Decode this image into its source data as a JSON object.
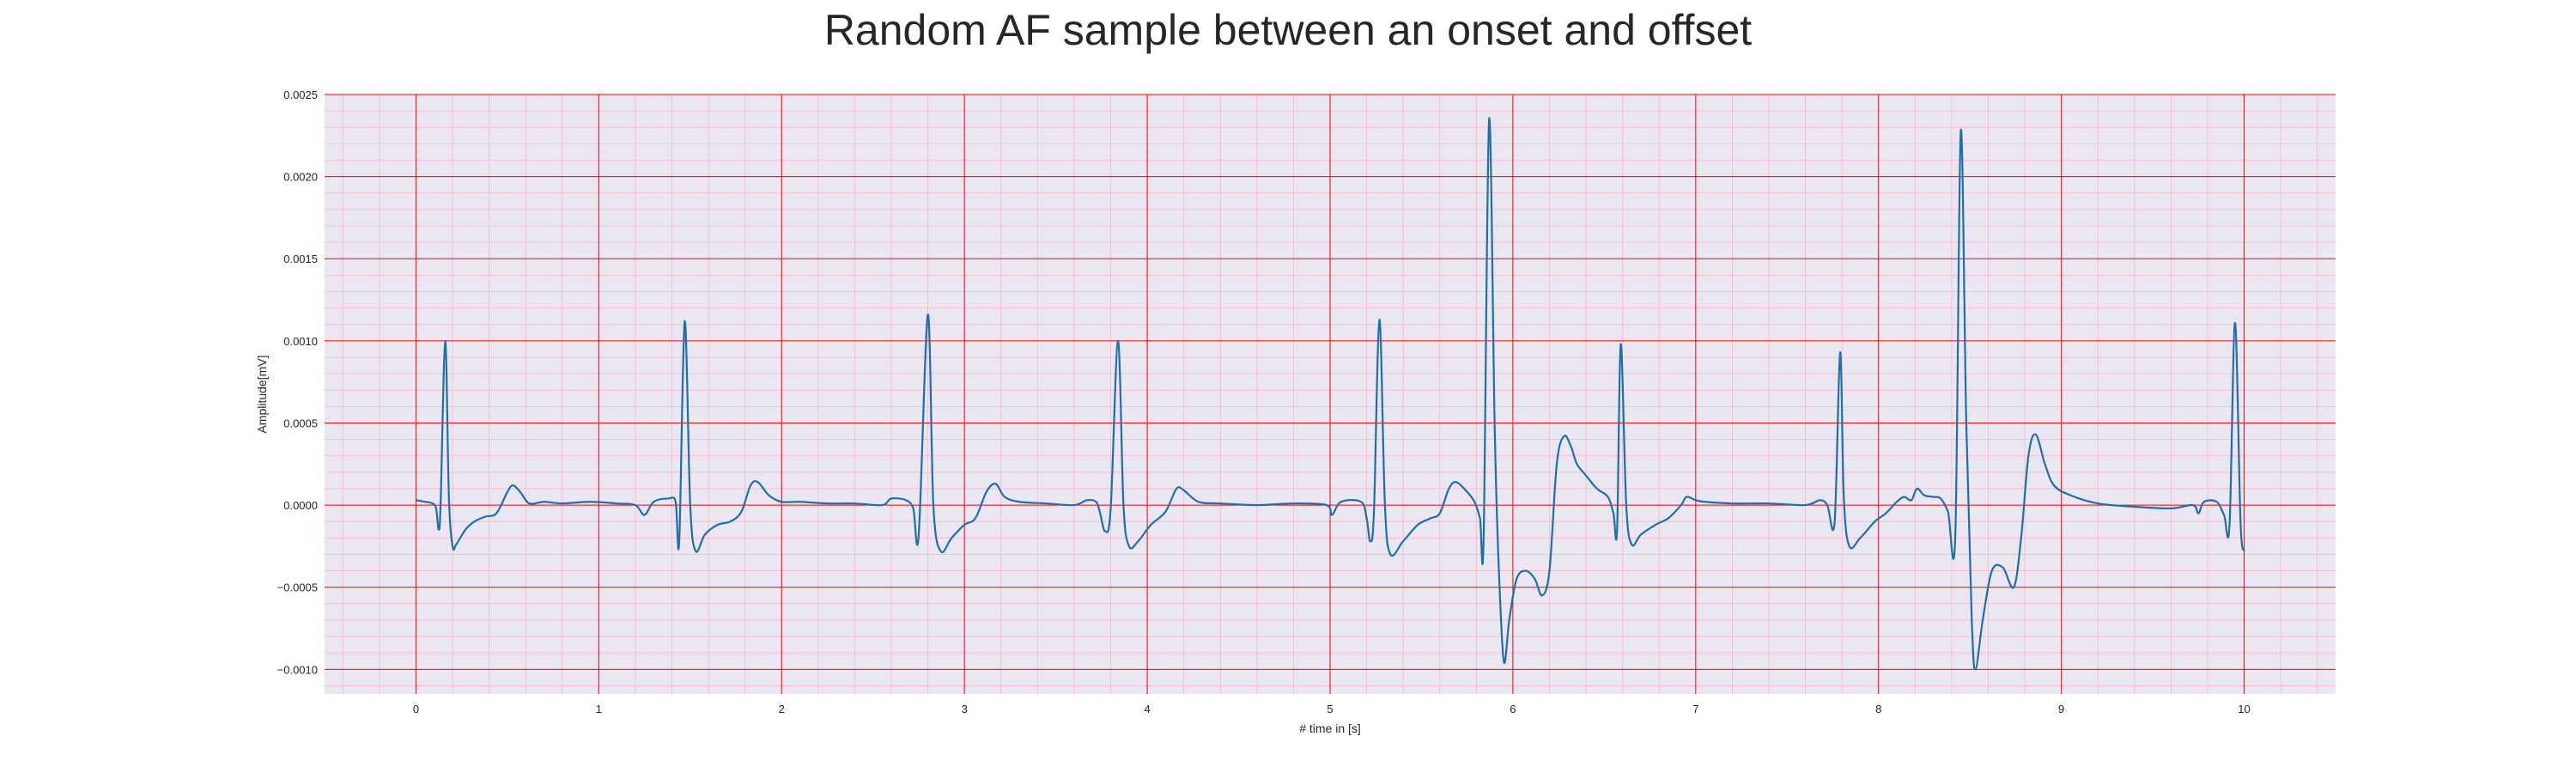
{
  "chart_data": {
    "type": "line",
    "title": "Random AF sample between an onset and offset",
    "xlabel": "# time in [s]",
    "ylabel": "Amplitude[mV]",
    "xlim": [
      -0.5,
      10.5
    ],
    "ylim": [
      -0.00115,
      0.0025
    ],
    "x_ticks": [
      0,
      1,
      2,
      3,
      4,
      5,
      6,
      7,
      8,
      9,
      10
    ],
    "y_ticks": [
      -0.001,
      -0.0005,
      0.0,
      0.0005,
      0.001,
      0.0015,
      0.002,
      0.0025
    ],
    "x_tick_labels": [
      "0",
      "1",
      "2",
      "3",
      "4",
      "5",
      "6",
      "7",
      "8",
      "9",
      "10"
    ],
    "y_tick_labels": [
      "−0.0010",
      "−0.0005",
      "0.0000",
      "0.0005",
      "0.0010",
      "0.0015",
      "0.0020",
      "0.0025"
    ],
    "grid": {
      "major": true,
      "minor": true,
      "major_color": "#ff0000",
      "minor_color": "#ffb6c1"
    },
    "background_color": "#eae6f2",
    "series": [
      {
        "color": "#1f6fa8",
        "points": [
          [
            0.0,
            3e-05
          ],
          [
            0.05,
            2e-05
          ],
          [
            0.09,
            1e-05
          ],
          [
            0.11,
            -2e-05
          ],
          [
            0.125,
            -0.00015
          ],
          [
            0.135,
            2e-05
          ],
          [
            0.16,
            0.001
          ],
          [
            0.18,
            5e-05
          ],
          [
            0.2,
            -0.00025
          ],
          [
            0.22,
            -0.00024
          ],
          [
            0.27,
            -0.00015
          ],
          [
            0.32,
            -0.0001
          ],
          [
            0.38,
            -7e-05
          ],
          [
            0.44,
            -5e-05
          ],
          [
            0.5,
            8e-05
          ],
          [
            0.53,
            0.00012
          ],
          [
            0.57,
            8e-05
          ],
          [
            0.62,
            1e-05
          ],
          [
            0.7,
            2e-05
          ],
          [
            0.8,
            1e-05
          ],
          [
            0.95,
            2e-05
          ],
          [
            1.1,
            1e-05
          ],
          [
            1.2,
            0.0
          ],
          [
            1.25,
            -6e-05
          ],
          [
            1.3,
            2e-05
          ],
          [
            1.38,
            4e-05
          ],
          [
            1.42,
            2e-05
          ],
          [
            1.44,
            -0.00022
          ],
          [
            1.47,
            0.00112
          ],
          [
            1.5,
            0.0
          ],
          [
            1.53,
            -0.00028
          ],
          [
            1.58,
            -0.00018
          ],
          [
            1.65,
            -0.00012
          ],
          [
            1.72,
            -0.0001
          ],
          [
            1.78,
            -4e-05
          ],
          [
            1.83,
            0.00012
          ],
          [
            1.87,
            0.00014
          ],
          [
            1.93,
            6e-05
          ],
          [
            2.0,
            2e-05
          ],
          [
            2.1,
            2e-05
          ],
          [
            2.25,
            1e-05
          ],
          [
            2.4,
            1e-05
          ],
          [
            2.55,
            0.0
          ],
          [
            2.6,
            4e-05
          ],
          [
            2.68,
            3e-05
          ],
          [
            2.72,
            -2e-05
          ],
          [
            2.75,
            -0.00018
          ],
          [
            2.8,
            0.00116
          ],
          [
            2.83,
            0.0
          ],
          [
            2.87,
            -0.00028
          ],
          [
            2.93,
            -0.0002
          ],
          [
            3.0,
            -0.00012
          ],
          [
            3.06,
            -8e-05
          ],
          [
            3.12,
            8e-05
          ],
          [
            3.17,
            0.00013
          ],
          [
            3.22,
            5e-05
          ],
          [
            3.3,
            2e-05
          ],
          [
            3.45,
            1e-05
          ],
          [
            3.6,
            0.0
          ],
          [
            3.67,
            3e-05
          ],
          [
            3.72,
            2e-05
          ],
          [
            3.74,
            -4e-05
          ],
          [
            3.77,
            -0.00016
          ],
          [
            3.8,
            -2e-05
          ],
          [
            3.84,
            0.001
          ],
          [
            3.87,
            0.0
          ],
          [
            3.9,
            -0.00025
          ],
          [
            3.95,
            -0.00022
          ],
          [
            4.02,
            -0.00012
          ],
          [
            4.1,
            -4e-05
          ],
          [
            4.16,
            0.0001
          ],
          [
            4.2,
            9e-05
          ],
          [
            4.28,
            2e-05
          ],
          [
            4.4,
            1e-05
          ],
          [
            4.6,
            0.0
          ],
          [
            4.8,
            1e-05
          ],
          [
            4.98,
            0.0
          ],
          [
            5.01,
            -6e-05
          ],
          [
            5.06,
            2e-05
          ],
          [
            5.17,
            2e-05
          ],
          [
            5.2,
            -8e-05
          ],
          [
            5.22,
            -0.00022
          ],
          [
            5.24,
            -4e-05
          ],
          [
            5.27,
            0.00113
          ],
          [
            5.3,
            0.0
          ],
          [
            5.33,
            -0.0003
          ],
          [
            5.4,
            -0.00022
          ],
          [
            5.48,
            -0.00012
          ],
          [
            5.55,
            -8e-05
          ],
          [
            5.6,
            -5e-05
          ],
          [
            5.65,
            0.0001
          ],
          [
            5.69,
            0.00014
          ],
          [
            5.75,
            8e-05
          ],
          [
            5.79,
            2e-05
          ],
          [
            5.82,
            -8e-05
          ],
          [
            5.84,
            -0.0002
          ],
          [
            5.87,
            0.00235
          ],
          [
            5.9,
            0.0005
          ],
          [
            5.92,
            -0.0003
          ],
          [
            5.95,
            -0.00095
          ],
          [
            5.98,
            -0.0007
          ],
          [
            6.02,
            -0.00045
          ],
          [
            6.07,
            -0.0004
          ],
          [
            6.12,
            -0.00045
          ],
          [
            6.16,
            -0.00055
          ],
          [
            6.2,
            -0.0004
          ],
          [
            6.24,
            0.00025
          ],
          [
            6.28,
            0.00042
          ],
          [
            6.32,
            0.00035
          ],
          [
            6.35,
            0.00025
          ],
          [
            6.4,
            0.00018
          ],
          [
            6.46,
            0.0001
          ],
          [
            6.52,
            5e-05
          ],
          [
            6.55,
            -5e-05
          ],
          [
            6.57,
            -0.00015
          ],
          [
            6.59,
            0.00098
          ],
          [
            6.62,
            0.0
          ],
          [
            6.65,
            -0.00024
          ],
          [
            6.7,
            -0.00018
          ],
          [
            6.78,
            -0.00012
          ],
          [
            6.85,
            -8e-05
          ],
          [
            6.92,
            0.0
          ],
          [
            6.95,
            5e-05
          ],
          [
            7.0,
            3e-05
          ],
          [
            7.05,
            2e-05
          ],
          [
            7.2,
            1e-05
          ],
          [
            7.4,
            1e-05
          ],
          [
            7.6,
            0.0
          ],
          [
            7.68,
            3e-05
          ],
          [
            7.72,
            0.0
          ],
          [
            7.76,
            -0.0001
          ],
          [
            7.79,
            0.00093
          ],
          [
            7.81,
            5e-05
          ],
          [
            7.84,
            -0.00025
          ],
          [
            7.9,
            -0.0002
          ],
          [
            7.98,
            -0.0001
          ],
          [
            8.04,
            -5e-05
          ],
          [
            8.1,
            2e-05
          ],
          [
            8.14,
            5e-05
          ],
          [
            8.18,
            3e-05
          ],
          [
            8.21,
            0.0001
          ],
          [
            8.25,
            6e-05
          ],
          [
            8.3,
            5e-05
          ],
          [
            8.34,
            4e-05
          ],
          [
            8.38,
            -4e-05
          ],
          [
            8.42,
            -0.00018
          ],
          [
            8.45,
            0.00228
          ],
          [
            8.48,
            0.0005
          ],
          [
            8.51,
            -0.0007
          ],
          [
            8.53,
            -0.001
          ],
          [
            8.57,
            -0.0007
          ],
          [
            8.62,
            -0.0004
          ],
          [
            8.68,
            -0.00038
          ],
          [
            8.74,
            -0.0005
          ],
          [
            8.78,
            -0.0002
          ],
          [
            8.82,
            0.0003
          ],
          [
            8.86,
            0.00043
          ],
          [
            8.91,
            0.00025
          ],
          [
            8.96,
            0.00012
          ],
          [
            9.05,
            6e-05
          ],
          [
            9.2,
            1e-05
          ],
          [
            9.4,
            -1e-05
          ],
          [
            9.6,
            -2e-05
          ],
          [
            9.72,
            0.0
          ],
          [
            9.75,
            -5e-05
          ],
          [
            9.78,
            2e-05
          ],
          [
            9.85,
            2e-05
          ],
          [
            9.89,
            -6e-05
          ],
          [
            9.92,
            -0.00012
          ],
          [
            9.95,
            0.00111
          ],
          [
            9.98,
            -0.0001
          ],
          [
            10.0,
            -0.00028
          ]
        ]
      }
    ]
  }
}
